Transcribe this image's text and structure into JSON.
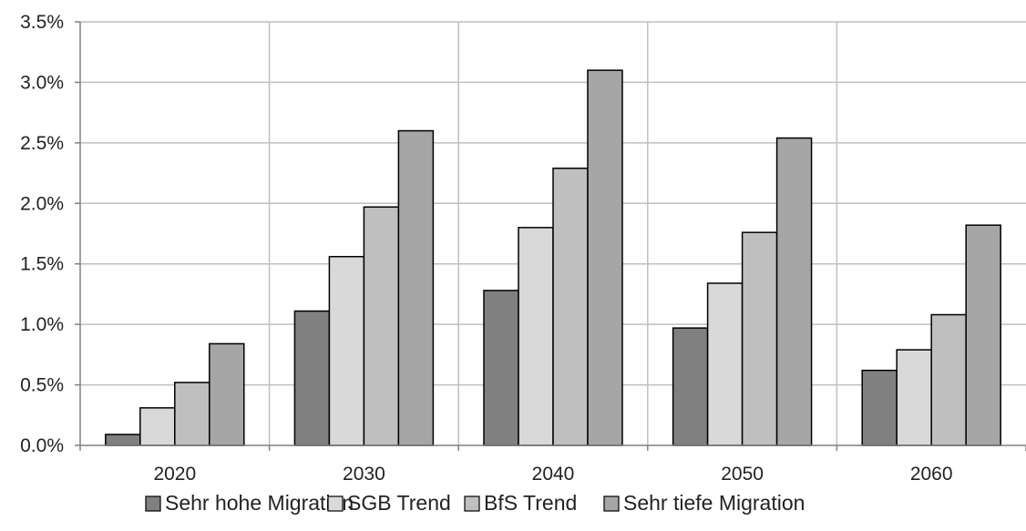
{
  "chart_data": {
    "type": "bar",
    "title": "",
    "xlabel": "",
    "ylabel": "",
    "categories": [
      "2020",
      "2030",
      "2040",
      "2050",
      "2060"
    ],
    "y_tick_labels": [
      "0.0%",
      "0.5%",
      "1.0%",
      "1.5%",
      "2.0%",
      "2.5%",
      "3.0%",
      "3.5%"
    ],
    "ylim": [
      0,
      3.5
    ],
    "y_unit": "%",
    "grid": {
      "horizontal": true,
      "vertical": true
    },
    "legend_position": "bottom",
    "series": [
      {
        "name": "Sehr hohe Migration",
        "values": [
          0.09,
          1.11,
          1.28,
          0.97,
          0.62
        ],
        "color": "#808080"
      },
      {
        "name": "SGB Trend",
        "values": [
          0.31,
          1.56,
          1.8,
          1.34,
          0.79
        ],
        "color": "#d9d9d9"
      },
      {
        "name": "BfS Trend",
        "values": [
          0.52,
          1.97,
          2.29,
          1.76,
          1.08
        ],
        "color": "#bfbfbf"
      },
      {
        "name": "Sehr tiefe Migration",
        "values": [
          0.84,
          2.6,
          3.1,
          2.54,
          1.82
        ],
        "color": "#a6a6a6"
      }
    ]
  }
}
